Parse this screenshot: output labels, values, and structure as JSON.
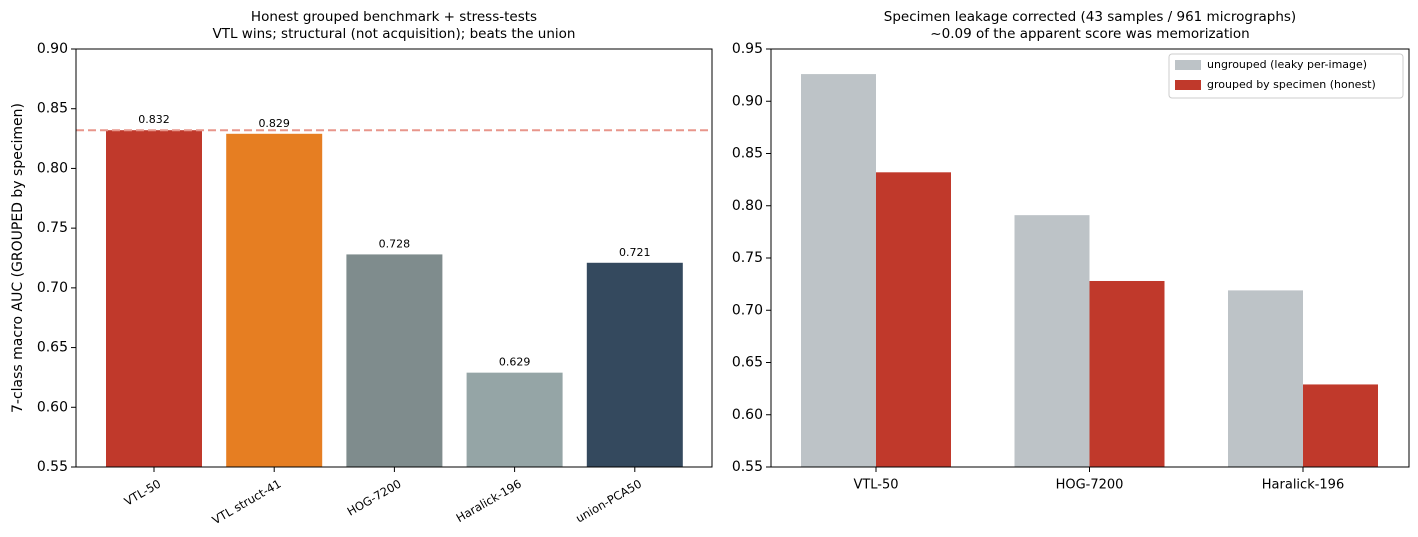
{
  "chart_data": [
    {
      "type": "bar",
      "title": "Honest grouped benchmark + stress-tests",
      "subtitle": "VTL wins; structural (not acquisition); beats the union",
      "ylabel": "7-class macro AUC (GROUPED by specimen)",
      "categories": [
        "VTL-50",
        "VTL struct-41",
        "HOG-7200",
        "Haralick-196",
        "union-PCA50"
      ],
      "values": [
        0.832,
        0.829,
        0.728,
        0.629,
        0.721
      ],
      "colors": [
        "#c0392b",
        "#e67e22",
        "#7f8c8d",
        "#95a5a6",
        "#34495e"
      ],
      "reference_line": {
        "value": 0.832,
        "color": "#e8968b"
      },
      "ylim": [
        0.55,
        0.9
      ],
      "yticks": [
        0.55,
        {
          "value": 0.6,
          "label": "0.60"
        },
        0.65,
        {
          "value": 0.7,
          "label": "0.70"
        },
        0.75,
        {
          "value": 0.8,
          "label": "0.80"
        },
        0.85,
        {
          "value": 0.9,
          "label": "0.90"
        }
      ],
      "grid": false
    },
    {
      "type": "grouped-bar",
      "title": "Specimen leakage corrected (43 samples / 961 micrographs)",
      "subtitle": "~0.09 of the apparent score was memorization",
      "categories": [
        "VTL-50",
        "HOG-7200",
        "Haralick-196"
      ],
      "series": [
        {
          "name": "ungrouped (leaky per-image)",
          "color": "#bdc3c7",
          "values": [
            0.926,
            0.791,
            0.719
          ]
        },
        {
          "name": "grouped by specimen (honest)",
          "color": "#c0392b",
          "values": [
            0.832,
            0.728,
            0.629
          ]
        }
      ],
      "ylim": [
        0.55,
        0.95
      ],
      "yticks": [
        0.55,
        {
          "value": 0.6,
          "label": "0.60"
        },
        0.65,
        {
          "value": 0.7,
          "label": "0.70"
        },
        0.75,
        {
          "value": 0.8,
          "label": "0.80"
        },
        0.85,
        {
          "value": 0.9,
          "label": "0.90"
        },
        0.95
      ],
      "legend": "upper right",
      "grid": false
    }
  ]
}
